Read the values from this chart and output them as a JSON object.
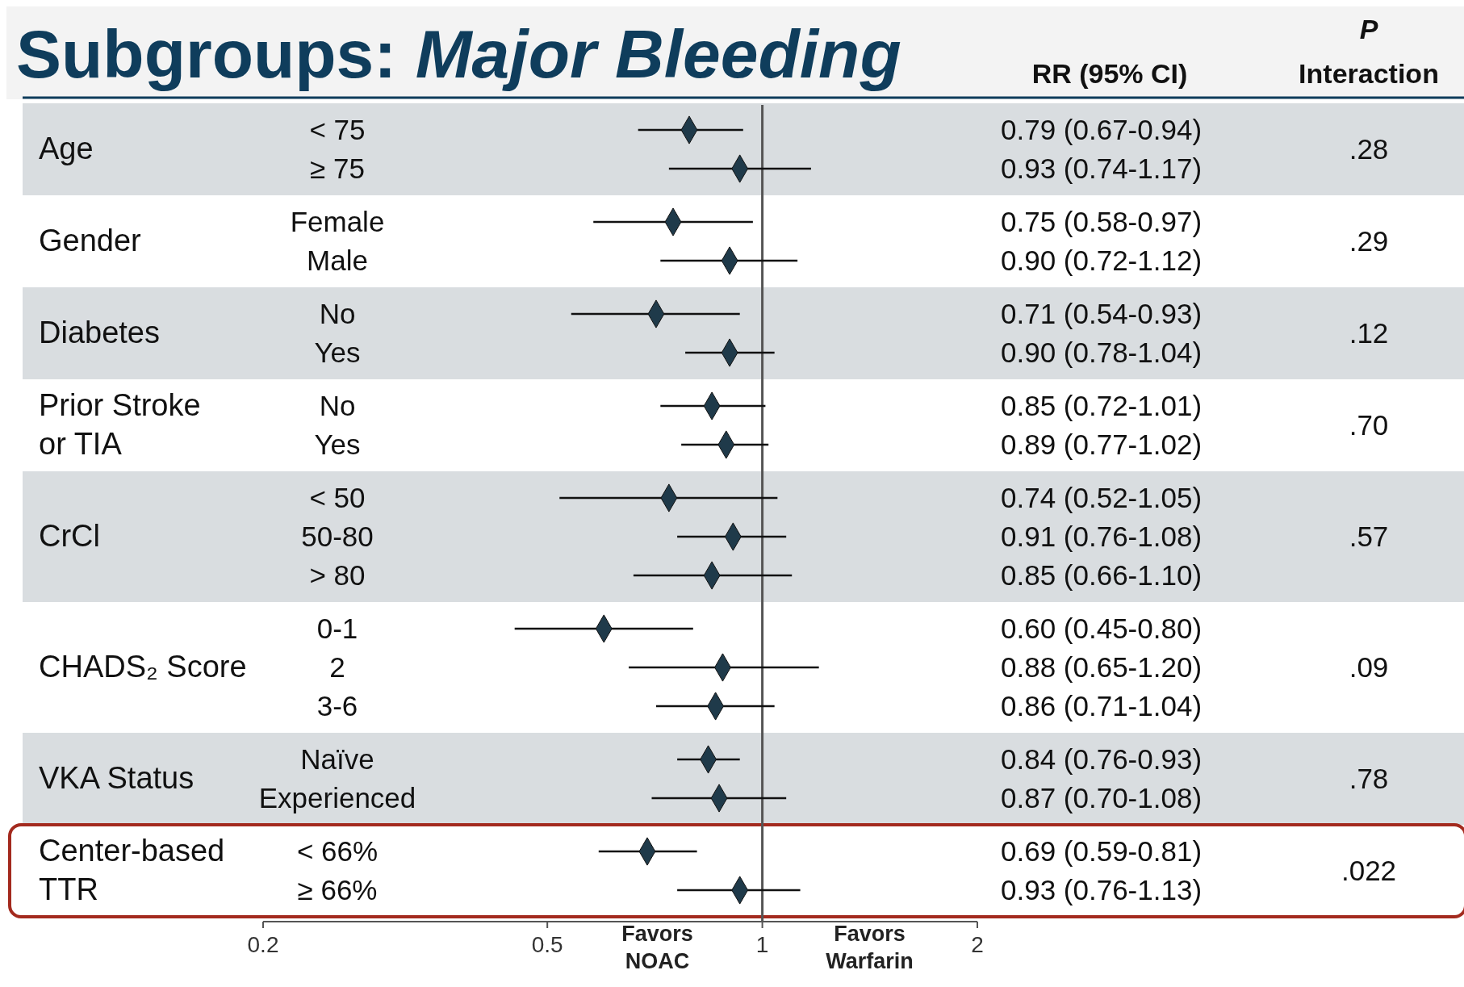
{
  "chart_data": {
    "type": "scatter",
    "title": "Subgroups: Major Bleeding",
    "orientation": "horizontal",
    "log": "x",
    "marker": "diamond",
    "categories": [
      "< 75",
      "≥ 75",
      "Female",
      "Male",
      "No",
      "Yes",
      "No",
      "Yes",
      "< 50",
      "50-80",
      "> 80",
      "0-1",
      "2",
      "3-6",
      "Naïve",
      "Experienced",
      "< 66%",
      "≥ 66%"
    ],
    "xlim": [
      0.2,
      2
    ],
    "xticks": [
      0.2,
      0.5,
      1,
      2
    ],
    "ref_lines": [
      {
        "axis": "x",
        "value": 1,
        "color": "#555555"
      }
    ],
    "bands": [
      {
        "axis": "y",
        "from": "< 75",
        "to": "≥ 75",
        "color": "#d9dde0"
      },
      {
        "axis": "y",
        "from": "No",
        "to": "Yes",
        "color": "#d9dde0"
      },
      {
        "axis": "y",
        "from": "< 50",
        "to": "> 80",
        "color": "#d9dde0"
      },
      {
        "axis": "y",
        "from": "Naïve",
        "to": "Experienced",
        "color": "#d9dde0"
      }
    ],
    "annotations": [
      "RR (95% CI)",
      "P Interaction",
      ".28",
      ".29",
      ".12",
      ".70",
      ".57",
      ".09",
      ".78",
      ".022",
      "Favors NOAC",
      "Favors Warfarin",
      "0.79 (0.67-0.94)",
      "0.93 (0.74-1.17)",
      "0.75 (0.58-0.97)",
      "0.90 (0.72-1.12)",
      "0.71 (0.54-0.93)",
      "0.90 (0.78-1.04)",
      "0.85 (0.72-1.01)",
      "0.89 (0.77-1.02)",
      "0.74 (0.52-1.05)",
      "0.91 (0.76-1.08)",
      "0.85 (0.66-1.10)",
      "0.60 (0.45-0.80)",
      "0.88 (0.65-1.20)",
      "0.86 (0.71-1.04)",
      "0.84 (0.76-0.93)",
      "0.87 (0.70-1.08)",
      "0.69 (0.59-0.81)",
      "0.93 (0.76-1.13)",
      "Age",
      "Gender",
      "Diabetes",
      "Prior Stroke or TIA",
      "CrCl",
      "CHADS₂ Score",
      "VKA Status",
      "Center-based TTR"
    ],
    "series": [
      {
        "color": "#1f3a4a",
        "values": [
          0.79,
          0.93,
          null,
          null,
          null,
          null,
          null,
          null,
          null,
          null,
          null,
          null,
          null,
          null,
          null,
          null,
          null,
          null
        ],
        "errors": [
          [
            0.67,
            0.94
          ],
          [
            0.74,
            1.17
          ],
          null,
          null,
          null,
          null,
          null,
          null,
          null,
          null,
          null,
          null,
          null,
          null,
          null,
          null,
          null,
          null
        ]
      },
      {
        "color": "#1f3a4a",
        "values": [
          null,
          null,
          0.75,
          0.9,
          null,
          null,
          null,
          null,
          null,
          null,
          null,
          null,
          null,
          null,
          null,
          null,
          null,
          null
        ],
        "errors": [
          null,
          null,
          [
            0.58,
            0.97
          ],
          [
            0.72,
            1.12
          ],
          null,
          null,
          null,
          null,
          null,
          null,
          null,
          null,
          null,
          null,
          null,
          null,
          null,
          null
        ]
      },
      {
        "color": "#1f3a4a",
        "values": [
          null,
          null,
          null,
          null,
          0.71,
          0.9,
          null,
          null,
          null,
          null,
          null,
          null,
          null,
          null,
          null,
          null,
          null,
          null
        ],
        "errors": [
          null,
          null,
          null,
          null,
          [
            0.54,
            0.93
          ],
          [
            0.78,
            1.04
          ],
          null,
          null,
          null,
          null,
          null,
          null,
          null,
          null,
          null,
          null,
          null,
          null
        ]
      },
      {
        "color": "#1f3a4a",
        "values": [
          null,
          null,
          null,
          null,
          null,
          null,
          0.85,
          0.89,
          null,
          null,
          null,
          null,
          null,
          null,
          null,
          null,
          null,
          null
        ],
        "errors": [
          null,
          null,
          null,
          null,
          null,
          null,
          [
            0.72,
            1.01
          ],
          [
            0.77,
            1.02
          ],
          null,
          null,
          null,
          null,
          null,
          null,
          null,
          null,
          null,
          null
        ]
      },
      {
        "color": "#1f3a4a",
        "values": [
          null,
          null,
          null,
          null,
          null,
          null,
          null,
          null,
          0.74,
          0.91,
          0.85,
          null,
          null,
          null,
          null,
          null,
          null,
          null
        ],
        "errors": [
          null,
          null,
          null,
          null,
          null,
          null,
          null,
          null,
          [
            0.52,
            1.05
          ],
          [
            0.76,
            1.08
          ],
          [
            0.66,
            1.1
          ],
          null,
          null,
          null,
          null,
          null,
          null,
          null
        ]
      },
      {
        "color": "#1f3a4a",
        "values": [
          null,
          null,
          null,
          null,
          null,
          null,
          null,
          null,
          null,
          null,
          null,
          0.6,
          0.88,
          0.86,
          null,
          null,
          null,
          null
        ],
        "errors": [
          null,
          null,
          null,
          null,
          null,
          null,
          null,
          null,
          null,
          null,
          null,
          [
            0.45,
            0.8
          ],
          [
            0.65,
            1.2
          ],
          [
            0.71,
            1.04
          ],
          null,
          null,
          null,
          null
        ]
      },
      {
        "color": "#1f3a4a",
        "values": [
          null,
          null,
          null,
          null,
          null,
          null,
          null,
          null,
          null,
          null,
          null,
          null,
          null,
          null,
          0.84,
          0.87,
          null,
          null
        ],
        "errors": [
          null,
          null,
          null,
          null,
          null,
          null,
          null,
          null,
          null,
          null,
          null,
          null,
          null,
          null,
          [
            0.76,
            0.93
          ],
          [
            0.7,
            1.08
          ],
          null,
          null
        ]
      },
      {
        "color": "#1f3a4a",
        "values": [
          null,
          null,
          null,
          null,
          null,
          null,
          null,
          null,
          null,
          null,
          null,
          null,
          null,
          null,
          null,
          null,
          0.69,
          0.93
        ],
        "errors": [
          null,
          null,
          null,
          null,
          null,
          null,
          null,
          null,
          null,
          null,
          null,
          null,
          null,
          null,
          null,
          null,
          [
            0.59,
            0.81
          ],
          [
            0.76,
            1.13
          ]
        ]
      }
    ]
  }
}
